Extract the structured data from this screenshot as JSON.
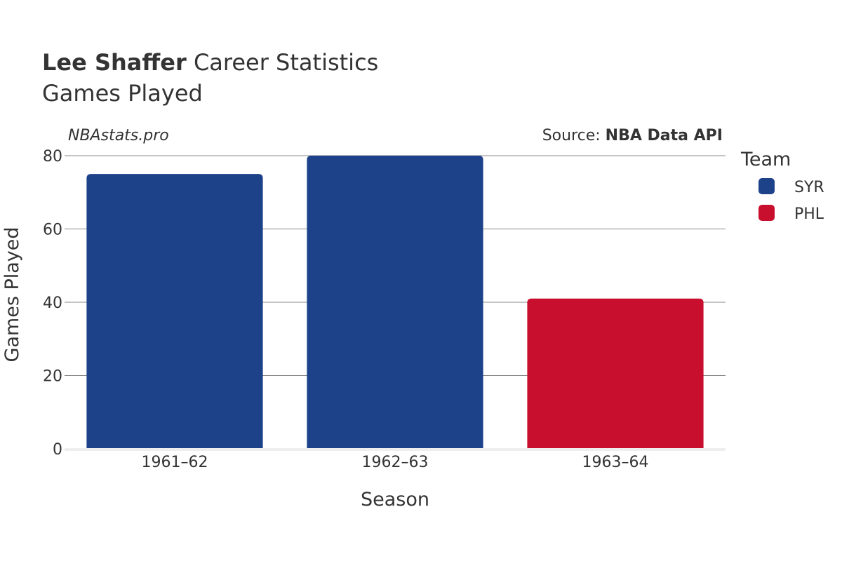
{
  "title": {
    "player": "Lee Shaffer",
    "rest": "Career Statistics",
    "subtitle": "Games Played"
  },
  "watermark": "NBAstats.pro",
  "source": {
    "prefix": "Source: ",
    "name": "NBA Data API"
  },
  "legend": {
    "title": "Team",
    "items": [
      {
        "label": "SYR",
        "color": "#1D428A"
      },
      {
        "label": "PHL",
        "color": "#C8102E"
      }
    ]
  },
  "chart_data": {
    "type": "bar",
    "title": "Lee Shaffer Career Statistics",
    "subtitle": "Games Played",
    "xlabel": "Season",
    "ylabel": "Games Played",
    "categories": [
      "1961–62",
      "1962–63",
      "1963–64"
    ],
    "values": [
      75,
      80,
      41
    ],
    "teams": [
      "SYR",
      "SYR",
      "PHL"
    ],
    "colors": [
      "#1D428A",
      "#1D428A",
      "#C8102E"
    ],
    "ylim": [
      0,
      80
    ],
    "yticks": [
      0,
      20,
      40,
      60,
      80
    ],
    "grid": true,
    "legend_position": "right"
  }
}
